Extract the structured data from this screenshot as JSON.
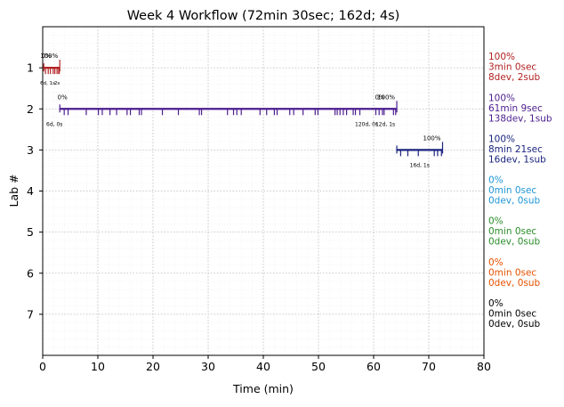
{
  "chart_data": {
    "type": "timeline",
    "title": "Week 4 Workflow (72min 30sec; 162d; 4s)",
    "xlabel": "Time (min)",
    "ylabel": "Lab #",
    "xlim": [
      0,
      80
    ],
    "ylim": [
      8,
      0
    ],
    "x_ticks": [
      0,
      10,
      20,
      30,
      40,
      50,
      60,
      70,
      80
    ],
    "y_ticks": [
      1,
      2,
      3,
      4,
      5,
      6,
      7
    ],
    "grid": true,
    "lanes": [
      {
        "lab": 1,
        "color": "#b22222",
        "start": 0.2,
        "end": 3.1,
        "events": [
          0.5,
          1.0,
          1.4,
          1.9,
          2.2,
          2.6,
          2.9,
          3.0
        ],
        "start_label": "0%",
        "end_label": "100%",
        "sub_labels": [
          "6d, 1s",
          "2s"
        ],
        "summary": [
          "100%",
          "3min 0sec",
          "8dev, 2sub"
        ]
      },
      {
        "lab": 2,
        "color": "#4b1d8f",
        "start": 3.1,
        "end": 64.2,
        "events": [
          3.9,
          4.6,
          7.9,
          10.1,
          10.8,
          12.2,
          13.4,
          15.3,
          15.9,
          17.5,
          17.9,
          21.7,
          24.6,
          28.4,
          28.8,
          33.5,
          34.6,
          35.2,
          36.0,
          39.4,
          40.6,
          42.0,
          42.5,
          44.8,
          45.5,
          47.2,
          49.4,
          49.9,
          53.0,
          53.4,
          53.9,
          54.5,
          55.1,
          56.3,
          56.7,
          57.5,
          60.4,
          61.0,
          61.6,
          61.9,
          63.6,
          64.0
        ],
        "start_label": "0%",
        "end_label": "100%",
        "mid_label": "0%",
        "sub_labels": [
          "6d, 0s",
          "120d, 0s",
          "12d, 1s"
        ],
        "summary": [
          "100%",
          "61min 9sec",
          "138dev, 1sub"
        ]
      },
      {
        "lab": 3,
        "color": "#1a237e",
        "start": 64.2,
        "end": 72.5,
        "events": [
          64.9,
          66.2,
          68.1,
          71.0,
          71.6,
          72.3
        ],
        "start_label": "",
        "end_label": "100%",
        "sub_labels": [
          "16d, 1s"
        ],
        "summary": [
          "100%",
          "8min 21sec",
          "16dev, 1sub"
        ]
      },
      {
        "lab": 4,
        "color": "#1e96d6",
        "summary": [
          "0%",
          "0min 0sec",
          "0dev, 0sub"
        ]
      },
      {
        "lab": 5,
        "color": "#2a8c2a",
        "summary": [
          "0%",
          "0min 0sec",
          "0dev, 0sub"
        ]
      },
      {
        "lab": 6,
        "color": "#e65100",
        "summary": [
          "0%",
          "0min 0sec",
          "0dev, 0sub"
        ]
      },
      {
        "lab": 7,
        "color": "#000000",
        "summary": [
          "0%",
          "0min 0sec",
          "0dev, 0sub"
        ]
      }
    ]
  }
}
